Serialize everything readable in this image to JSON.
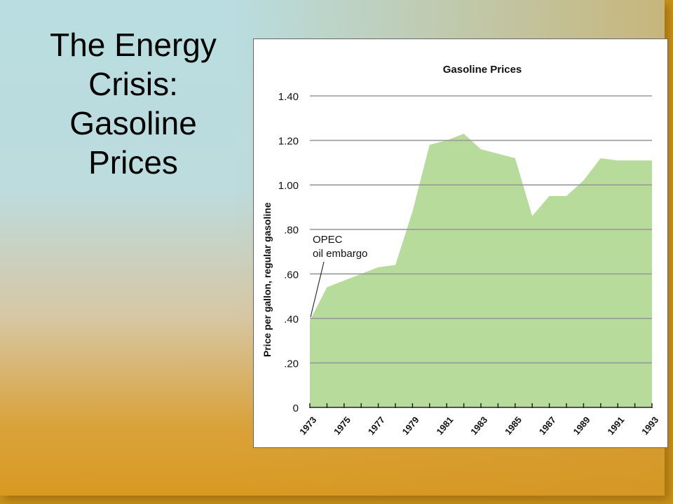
{
  "slide": {
    "title": "The Energy\nCrisis:\nGasoline\nPrices"
  },
  "colors": {
    "area_fill": "#b7db9a",
    "gridline": "#9a9a9a",
    "background_frame": "#c8921a"
  },
  "chart_data": {
    "type": "area",
    "title": "Gasoline Prices",
    "xlabel": "",
    "ylabel": "Price per gallon, regular gasoline",
    "x": [
      1973,
      1974,
      1975,
      1976,
      1977,
      1978,
      1979,
      1980,
      1981,
      1982,
      1983,
      1984,
      1985,
      1986,
      1987,
      1988,
      1989,
      1990,
      1991,
      1992,
      1993
    ],
    "values": [
      0.39,
      0.54,
      0.57,
      0.6,
      0.63,
      0.64,
      0.88,
      1.18,
      1.2,
      1.23,
      1.16,
      1.14,
      1.12,
      0.86,
      0.95,
      0.95,
      1.02,
      1.12,
      1.11,
      1.11,
      1.11
    ],
    "ylim": [
      0,
      1.4
    ],
    "y_ticks": [
      {
        "value": 0,
        "label": "0"
      },
      {
        "value": 0.2,
        "label": ".20"
      },
      {
        "value": 0.4,
        "label": ".40"
      },
      {
        "value": 0.6,
        "label": ".60"
      },
      {
        "value": 0.8,
        "label": ".80"
      },
      {
        "value": 1.0,
        "label": "1.00"
      },
      {
        "value": 1.2,
        "label": "1.20"
      },
      {
        "value": 1.4,
        "label": "1.40"
      }
    ],
    "x_ticks": [
      "1973",
      "1975",
      "1977",
      "1979",
      "1981",
      "1983",
      "1985",
      "1987",
      "1989",
      "1991",
      "1993"
    ],
    "grid": true,
    "annotation": {
      "lines": [
        "OPEC",
        "oil embargo"
      ],
      "x": 1973,
      "y": 0.4
    }
  }
}
